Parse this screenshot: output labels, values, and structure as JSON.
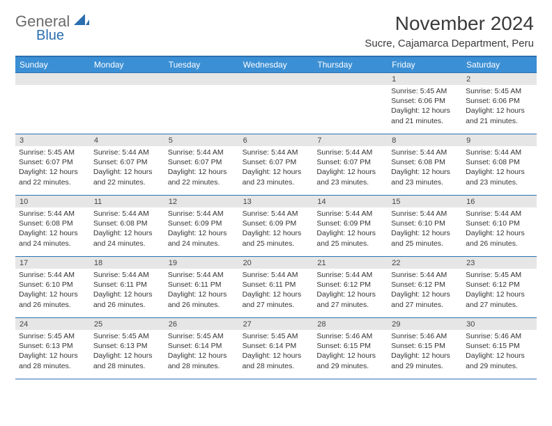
{
  "logo": {
    "part1": "General",
    "part2": "Blue"
  },
  "title": "November 2024",
  "location": "Sucre, Cajamarca Department, Peru",
  "day_headers": [
    "Sunday",
    "Monday",
    "Tuesday",
    "Wednesday",
    "Thursday",
    "Friday",
    "Saturday"
  ],
  "colors": {
    "header_bg": "#3b8fd4",
    "header_text": "#ffffff",
    "border": "#2b6fb0",
    "daynum_bg": "#e6e6e6",
    "text": "#333333",
    "logo_gray": "#6b6b6b",
    "logo_blue": "#2b6fb0"
  },
  "leading_blanks": 5,
  "days": [
    {
      "n": 1,
      "sunrise": "5:45 AM",
      "sunset": "6:06 PM",
      "daylight": "12 hours and 21 minutes."
    },
    {
      "n": 2,
      "sunrise": "5:45 AM",
      "sunset": "6:06 PM",
      "daylight": "12 hours and 21 minutes."
    },
    {
      "n": 3,
      "sunrise": "5:45 AM",
      "sunset": "6:07 PM",
      "daylight": "12 hours and 22 minutes."
    },
    {
      "n": 4,
      "sunrise": "5:44 AM",
      "sunset": "6:07 PM",
      "daylight": "12 hours and 22 minutes."
    },
    {
      "n": 5,
      "sunrise": "5:44 AM",
      "sunset": "6:07 PM",
      "daylight": "12 hours and 22 minutes."
    },
    {
      "n": 6,
      "sunrise": "5:44 AM",
      "sunset": "6:07 PM",
      "daylight": "12 hours and 23 minutes."
    },
    {
      "n": 7,
      "sunrise": "5:44 AM",
      "sunset": "6:07 PM",
      "daylight": "12 hours and 23 minutes."
    },
    {
      "n": 8,
      "sunrise": "5:44 AM",
      "sunset": "6:08 PM",
      "daylight": "12 hours and 23 minutes."
    },
    {
      "n": 9,
      "sunrise": "5:44 AM",
      "sunset": "6:08 PM",
      "daylight": "12 hours and 23 minutes."
    },
    {
      "n": 10,
      "sunrise": "5:44 AM",
      "sunset": "6:08 PM",
      "daylight": "12 hours and 24 minutes."
    },
    {
      "n": 11,
      "sunrise": "5:44 AM",
      "sunset": "6:08 PM",
      "daylight": "12 hours and 24 minutes."
    },
    {
      "n": 12,
      "sunrise": "5:44 AM",
      "sunset": "6:09 PM",
      "daylight": "12 hours and 24 minutes."
    },
    {
      "n": 13,
      "sunrise": "5:44 AM",
      "sunset": "6:09 PM",
      "daylight": "12 hours and 25 minutes."
    },
    {
      "n": 14,
      "sunrise": "5:44 AM",
      "sunset": "6:09 PM",
      "daylight": "12 hours and 25 minutes."
    },
    {
      "n": 15,
      "sunrise": "5:44 AM",
      "sunset": "6:10 PM",
      "daylight": "12 hours and 25 minutes."
    },
    {
      "n": 16,
      "sunrise": "5:44 AM",
      "sunset": "6:10 PM",
      "daylight": "12 hours and 26 minutes."
    },
    {
      "n": 17,
      "sunrise": "5:44 AM",
      "sunset": "6:10 PM",
      "daylight": "12 hours and 26 minutes."
    },
    {
      "n": 18,
      "sunrise": "5:44 AM",
      "sunset": "6:11 PM",
      "daylight": "12 hours and 26 minutes."
    },
    {
      "n": 19,
      "sunrise": "5:44 AM",
      "sunset": "6:11 PM",
      "daylight": "12 hours and 26 minutes."
    },
    {
      "n": 20,
      "sunrise": "5:44 AM",
      "sunset": "6:11 PM",
      "daylight": "12 hours and 27 minutes."
    },
    {
      "n": 21,
      "sunrise": "5:44 AM",
      "sunset": "6:12 PM",
      "daylight": "12 hours and 27 minutes."
    },
    {
      "n": 22,
      "sunrise": "5:44 AM",
      "sunset": "6:12 PM",
      "daylight": "12 hours and 27 minutes."
    },
    {
      "n": 23,
      "sunrise": "5:45 AM",
      "sunset": "6:12 PM",
      "daylight": "12 hours and 27 minutes."
    },
    {
      "n": 24,
      "sunrise": "5:45 AM",
      "sunset": "6:13 PM",
      "daylight": "12 hours and 28 minutes."
    },
    {
      "n": 25,
      "sunrise": "5:45 AM",
      "sunset": "6:13 PM",
      "daylight": "12 hours and 28 minutes."
    },
    {
      "n": 26,
      "sunrise": "5:45 AM",
      "sunset": "6:14 PM",
      "daylight": "12 hours and 28 minutes."
    },
    {
      "n": 27,
      "sunrise": "5:45 AM",
      "sunset": "6:14 PM",
      "daylight": "12 hours and 28 minutes."
    },
    {
      "n": 28,
      "sunrise": "5:46 AM",
      "sunset": "6:15 PM",
      "daylight": "12 hours and 29 minutes."
    },
    {
      "n": 29,
      "sunrise": "5:46 AM",
      "sunset": "6:15 PM",
      "daylight": "12 hours and 29 minutes."
    },
    {
      "n": 30,
      "sunrise": "5:46 AM",
      "sunset": "6:15 PM",
      "daylight": "12 hours and 29 minutes."
    }
  ],
  "labels": {
    "sunrise": "Sunrise: ",
    "sunset": "Sunset: ",
    "daylight": "Daylight: "
  }
}
